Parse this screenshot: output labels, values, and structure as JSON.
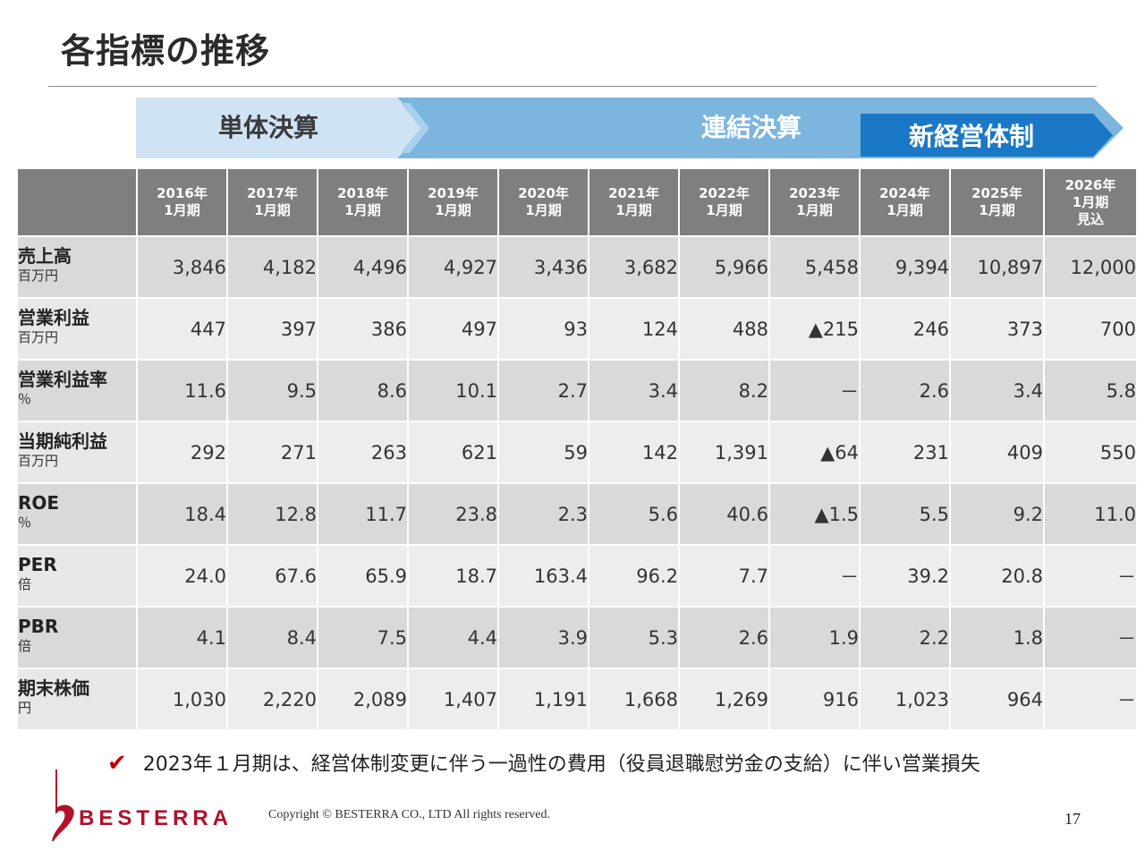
{
  "title": "各指標の推移",
  "banner": {
    "single_label": "単体決算",
    "consolidated_label": "連結決算",
    "new_label": "新経営体制",
    "colors": {
      "single": "#cfe3f4",
      "consolidated": "#7cb5de",
      "new": "#1a78c6"
    }
  },
  "table": {
    "columns": [
      [
        "2016年",
        "1月期"
      ],
      [
        "2017年",
        "1月期"
      ],
      [
        "2018年",
        "1月期"
      ],
      [
        "2019年",
        "1月期"
      ],
      [
        "2020年",
        "1月期"
      ],
      [
        "2021年",
        "1月期"
      ],
      [
        "2022年",
        "1月期"
      ],
      [
        "2023年",
        "1月期"
      ],
      [
        "2024年",
        "1月期"
      ],
      [
        "2025年",
        "1月期"
      ],
      [
        "2026年",
        "1月期",
        "見込"
      ]
    ],
    "rows": [
      {
        "name": "売上高",
        "unit": "百万円",
        "values": [
          "3,846",
          "4,182",
          "4,496",
          "4,927",
          "3,436",
          "3,682",
          "5,966",
          "5,458",
          "9,394",
          "10,897",
          "12,000"
        ]
      },
      {
        "name": "営業利益",
        "unit": "百万円",
        "values": [
          "447",
          "397",
          "386",
          "497",
          "93",
          "124",
          "488",
          "▲215",
          "246",
          "373",
          "700"
        ]
      },
      {
        "name": "営業利益率",
        "unit": "％",
        "values": [
          "11.6",
          "9.5",
          "8.6",
          "10.1",
          "2.7",
          "3.4",
          "8.2",
          "－",
          "2.6",
          "3.4",
          "5.8"
        ]
      },
      {
        "name": "当期純利益",
        "unit": "百万円",
        "values": [
          "292",
          "271",
          "263",
          "621",
          "59",
          "142",
          "1,391",
          "▲64",
          "231",
          "409",
          "550"
        ]
      },
      {
        "name": "ROE",
        "unit": "％",
        "values": [
          "18.4",
          "12.8",
          "11.7",
          "23.8",
          "2.3",
          "5.6",
          "40.6",
          "▲1.5",
          "5.5",
          "9.2",
          "11.0"
        ]
      },
      {
        "name": "PER",
        "unit": "倍",
        "values": [
          "24.0",
          "67.6",
          "65.9",
          "18.7",
          "163.4",
          "96.2",
          "7.7",
          "－",
          "39.2",
          "20.8",
          "－"
        ]
      },
      {
        "name": "PBR",
        "unit": "倍",
        "values": [
          "4.1",
          "8.4",
          "7.5",
          "4.4",
          "3.9",
          "5.3",
          "2.6",
          "1.9",
          "2.2",
          "1.8",
          "－"
        ]
      },
      {
        "name": "期末株価",
        "unit": "円",
        "values": [
          "1,030",
          "2,220",
          "2,089",
          "1,407",
          "1,191",
          "1,668",
          "1,269",
          "916",
          "1,023",
          "964",
          "－"
        ]
      }
    ],
    "red_cells": [
      "1-7",
      "2-7"
    ],
    "colors": {
      "header": "#7f7f7f",
      "row_dark": "#d9d9d9",
      "row_light": "#ededed",
      "negative": "#c00000"
    }
  },
  "note": {
    "check": "✔",
    "text": "2023年１月期は、経営体制変更に伴う一過性の費用（役員退職慰労金の支給）に伴い営業損失"
  },
  "footer": {
    "logo_text": "BESTERRA",
    "copyright": "Copyright © BESTERRA CO., LTD All rights reserved.",
    "page_number": "17"
  }
}
